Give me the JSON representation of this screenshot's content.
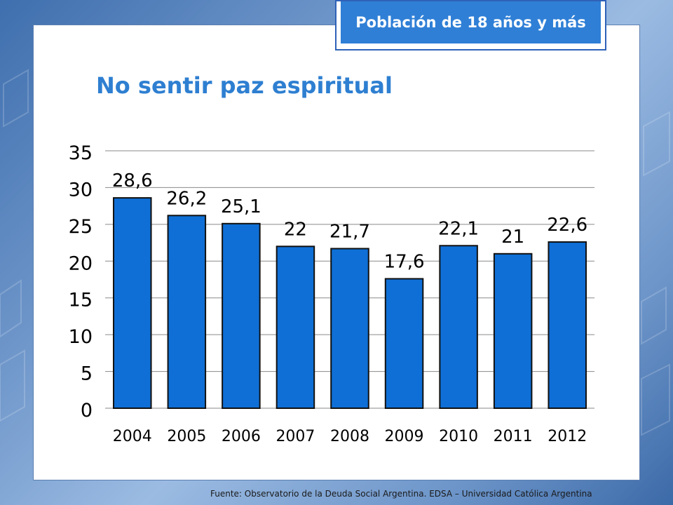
{
  "badge": {
    "label": "Población de 18 años y más"
  },
  "source": "Fuente:   Observatorio de  la Deuda Social Argentina. EDSA  –  Universidad Católica Argentina",
  "colors": {
    "bar": "#0f6fd6",
    "bar_stroke": "#111111",
    "accent": "#2e7fd1",
    "grid": "#8a8a8a"
  },
  "chart_data": {
    "type": "bar",
    "title": "No sentir paz espiritual",
    "categories": [
      "2004",
      "2005",
      "2006",
      "2007",
      "2008",
      "2009",
      "2010",
      "2011",
      "2012"
    ],
    "values": [
      28.6,
      26.2,
      25.1,
      22,
      21.7,
      17.6,
      22.1,
      21,
      22.6
    ],
    "data_labels": [
      "28,6",
      "26,2",
      "25,1",
      "22",
      "21,7",
      "17,6",
      "22,1",
      "21",
      "22,6"
    ],
    "yticks": [
      0,
      5,
      10,
      15,
      20,
      25,
      30,
      35
    ],
    "ylim": [
      0,
      35
    ],
    "grid": true,
    "legend": "none",
    "xlabel": "",
    "ylabel": ""
  }
}
